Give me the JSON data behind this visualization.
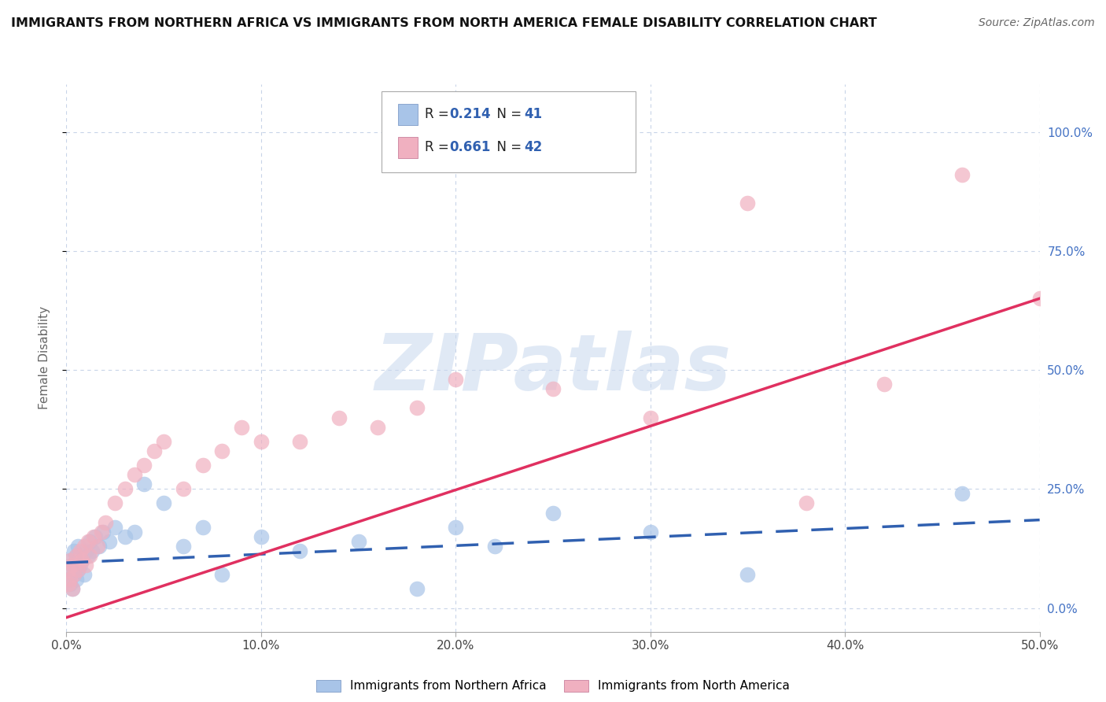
{
  "title": "IMMIGRANTS FROM NORTHERN AFRICA VS IMMIGRANTS FROM NORTH AMERICA FEMALE DISABILITY CORRELATION CHART",
  "source": "Source: ZipAtlas.com",
  "series1_label": "Immigrants from Northern Africa",
  "series2_label": "Immigrants from North America",
  "series1_R": "0.214",
  "series1_N": "41",
  "series2_R": "0.661",
  "series2_N": "42",
  "series1_color": "#a8c4e8",
  "series2_color": "#f0b0c0",
  "series1_line_color": "#3060b0",
  "series2_line_color": "#e03060",
  "xlim": [
    0.0,
    0.5
  ],
  "ylim": [
    -0.05,
    1.1
  ],
  "xlabel_ticks": [
    0.0,
    0.1,
    0.2,
    0.3,
    0.4,
    0.5
  ],
  "ylabel_ticks": [
    0.0,
    0.25,
    0.5,
    0.75,
    1.0
  ],
  "series1_x": [
    0.001,
    0.001,
    0.002,
    0.002,
    0.003,
    0.003,
    0.004,
    0.004,
    0.005,
    0.005,
    0.006,
    0.006,
    0.007,
    0.008,
    0.009,
    0.01,
    0.011,
    0.012,
    0.013,
    0.015,
    0.017,
    0.019,
    0.022,
    0.025,
    0.03,
    0.035,
    0.04,
    0.05,
    0.06,
    0.07,
    0.08,
    0.1,
    0.12,
    0.15,
    0.18,
    0.2,
    0.22,
    0.25,
    0.3,
    0.35,
    0.46
  ],
  "series1_y": [
    0.06,
    0.08,
    0.05,
    0.1,
    0.04,
    0.09,
    0.07,
    0.12,
    0.06,
    0.11,
    0.08,
    0.13,
    0.09,
    0.1,
    0.07,
    0.12,
    0.11,
    0.14,
    0.12,
    0.15,
    0.13,
    0.16,
    0.14,
    0.17,
    0.15,
    0.16,
    0.26,
    0.22,
    0.13,
    0.17,
    0.07,
    0.15,
    0.12,
    0.14,
    0.04,
    0.17,
    0.13,
    0.2,
    0.16,
    0.07,
    0.24
  ],
  "series2_x": [
    0.001,
    0.001,
    0.002,
    0.002,
    0.003,
    0.003,
    0.004,
    0.005,
    0.006,
    0.007,
    0.008,
    0.009,
    0.01,
    0.011,
    0.012,
    0.014,
    0.016,
    0.018,
    0.02,
    0.025,
    0.03,
    0.035,
    0.04,
    0.045,
    0.05,
    0.06,
    0.07,
    0.08,
    0.09,
    0.1,
    0.12,
    0.14,
    0.16,
    0.18,
    0.2,
    0.25,
    0.3,
    0.35,
    0.38,
    0.42,
    0.46,
    0.5
  ],
  "series2_y": [
    0.05,
    0.08,
    0.06,
    0.1,
    0.04,
    0.09,
    0.07,
    0.11,
    0.08,
    0.12,
    0.1,
    0.13,
    0.09,
    0.14,
    0.11,
    0.15,
    0.13,
    0.16,
    0.18,
    0.22,
    0.25,
    0.28,
    0.3,
    0.33,
    0.35,
    0.25,
    0.3,
    0.33,
    0.38,
    0.35,
    0.35,
    0.4,
    0.38,
    0.42,
    0.48,
    0.46,
    0.4,
    0.85,
    0.22,
    0.47,
    0.91,
    0.65
  ],
  "series1_trend": [
    0.095,
    0.185
  ],
  "series2_trend": [
    -0.02,
    0.65
  ],
  "watermark_text": "ZIPatlas",
  "background_color": "#ffffff",
  "grid_color": "#c8d4e8",
  "right_ytick_color": "#4472c4",
  "title_fontsize": 11.5,
  "source_fontsize": 10
}
